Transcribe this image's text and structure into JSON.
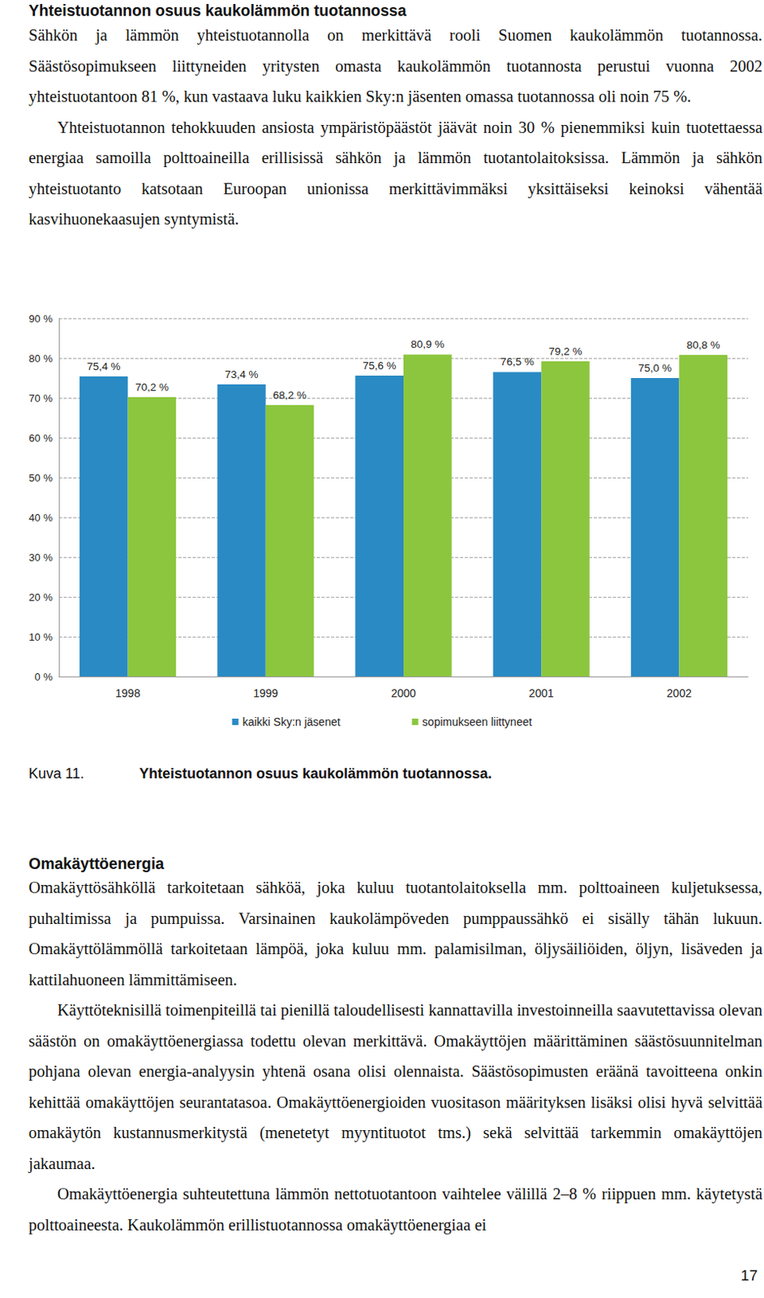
{
  "heading": "Yhteistuotannon osuus kaukolämmön tuotannossa",
  "section1": [
    "Sähkön ja lämmön yhteistuotannolla on merkittävä rooli Suomen kaukolämmön tuotannossa. Säästösopimukseen liittyneiden yritysten omasta kaukolämmön tuotannosta perustui vuonna 2002 yhteistuotantoon 81 %, kun vastaava luku kaikkien Sky:n jäsenten omassa tuotannossa oli noin 75 %.",
    "Yhteistuotannon tehokkuuden ansiosta ympäristöpäästöt jäävät noin 30 % pienemmiksi kuin tuotettaessa energiaa samoilla polttoaineilla erillisissä sähkön ja lämmön tuotantolaitoksissa. Lämmön ja sähkön yhteistuotanto katsotaan Euroopan unionissa merkittävimmäksi yksittäiseksi keinoksi vähentää kasvihuonekaasujen syntymistä."
  ],
  "chart_data": {
    "type": "bar",
    "categories": [
      "1998",
      "1999",
      "2000",
      "2001",
      "2002"
    ],
    "series": [
      {
        "name": "kaikki Sky:n jäsenet",
        "color": "#2a8ac4",
        "values": [
          75.4,
          73.4,
          75.6,
          76.5,
          75.0
        ],
        "value_labels": [
          "75,4 %",
          "73,4 %",
          "75,6 %",
          "76,5 %",
          "75,0 %"
        ]
      },
      {
        "name": "sopimukseen liittyneet",
        "color": "#8cc63e",
        "values": [
          70.2,
          68.2,
          80.9,
          79.2,
          80.8
        ],
        "value_labels": [
          "70,2 %",
          "68,2 %",
          "80,9 %",
          "79,2 %",
          "80,8 %"
        ]
      }
    ],
    "ylim": [
      0,
      90
    ],
    "yticks": [
      {
        "value": 0,
        "label": "0 %"
      },
      {
        "value": 10,
        "label": "10 %"
      },
      {
        "value": 20,
        "label": "20 %"
      },
      {
        "value": 30,
        "label": "30 %"
      },
      {
        "value": 40,
        "label": "40 %"
      },
      {
        "value": 50,
        "label": "50 %"
      },
      {
        "value": 60,
        "label": "60 %"
      },
      {
        "value": 70,
        "label": "70 %"
      },
      {
        "value": 80,
        "label": "80 %"
      },
      {
        "value": 90,
        "label": "90 %"
      }
    ],
    "grid": true,
    "legend": "bottom",
    "data_labels": true
  },
  "caption": {
    "number": "Kuva 11.",
    "title": "Yhteistuotannon osuus kaukolämmön tuotannossa."
  },
  "heading2": "Omakäyttöenergia",
  "section2": [
    "Omakäyttösähköllä tarkoitetaan sähköä, joka kuluu tuotantolaitoksella mm. polttoaineen kuljetuksessa, puhaltimissa ja pumpuissa. Varsinainen kaukolämpöveden pumppaussähkö ei sisälly tähän lukuun. Omakäyttölämmöllä tarkoitetaan lämpöä, joka kuluu mm. palamisilman, öljysäiliöiden, öljyn, lisäveden ja kattilahuoneen lämmittämiseen.",
    "Käyttöteknisillä toimenpiteillä tai pienillä taloudellisesti kannattavilla investoinneilla saavutettavissa olevan säästön on omakäyttöenergiassa todettu olevan merkittävä. Omakäyttöjen määrittäminen säästösuunnitelman pohjana olevan energia-analyysin yhtenä osana olisi olennaista. Säästösopimusten eräänä tavoitteena onkin kehittää omakäyttöjen seurantatasoa. Omakäyttöenergioiden vuositason määrityksen lisäksi olisi hyvä selvittää omakäytön kustannusmerkitystä (menetetyt myyntituotot tms.) sekä selvittää tarkemmin omakäyttöjen jakaumaa.",
    "Omakäyttöenergia suhteutettuna lämmön nettotuotantoon vaihtelee välillä 2–8 % riippuen mm. käytetystä polttoaineesta. Kaukolämmön erillistuotannossa omakäyttöenergiaa ei"
  ],
  "page_number": "17"
}
